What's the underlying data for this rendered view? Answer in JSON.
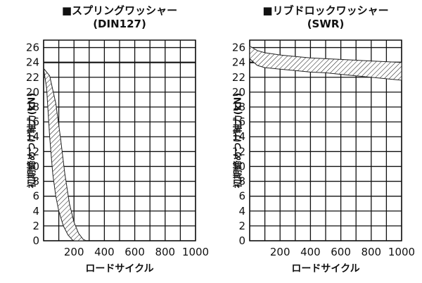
{
  "chart_data": [
    {
      "type": "area",
      "title": "■スプリングワッシャー",
      "subtitle": "(DIN127)",
      "xlabel": "ロードサイクル",
      "ylabel": "初期締めつけ軸力(kN)",
      "xlim": [
        0,
        1000
      ],
      "ylim": [
        0,
        27
      ],
      "x_ticks": [
        200,
        400,
        600,
        800,
        1000
      ],
      "y_ticks": [
        0,
        2,
        4,
        6,
        8,
        10,
        12,
        14,
        16,
        18,
        20,
        22,
        24,
        26
      ],
      "grid": true,
      "bold_gridline_y": 24,
      "series": [
        {
          "upper": {
            "x": [
              0,
              40,
              80,
              110,
              140,
              170,
              200,
              230,
              260,
              280
            ],
            "y": [
              23.2,
              22.2,
              18.5,
              14,
              9,
              5,
              2.5,
              1,
              0.2,
              0
            ]
          },
          "lower": {
            "x": [
              0,
              20,
              40,
              60,
              80,
              100,
              130,
              160,
              190,
              200
            ],
            "y": [
              23.2,
              20.5,
              14,
              9,
              6,
              4,
              2,
              0.8,
              0.1,
              0
            ]
          }
        }
      ]
    },
    {
      "type": "area",
      "title": "■リブドロックワッシャー",
      "subtitle": "(SWR)",
      "xlabel": "ロードサイクル",
      "ylabel": "初期締めつけ軸力(kN)",
      "xlim": [
        0,
        1000
      ],
      "ylim": [
        0,
        27
      ],
      "x_ticks": [
        200,
        400,
        600,
        800,
        1000
      ],
      "y_ticks": [
        0,
        2,
        4,
        6,
        8,
        10,
        12,
        14,
        16,
        18,
        20,
        22,
        24,
        26
      ],
      "grid": true,
      "bold_gridline_y": 24,
      "series": [
        {
          "upper": {
            "x": [
              0,
              50,
              100,
              200,
              300,
              400,
              500,
              600,
              700,
              800,
              900,
              1000
            ],
            "y": [
              26.2,
              25.6,
              25.3,
              25.0,
              24.8,
              24.6,
              24.5,
              24.4,
              24.3,
              24.2,
              24.1,
              24.0
            ]
          },
          "lower": {
            "x": [
              0,
              50,
              100,
              200,
              300,
              400,
              500,
              600,
              700,
              800,
              900,
              1000
            ],
            "y": [
              24.5,
              23.6,
              23.3,
              23.1,
              22.9,
              22.7,
              22.6,
              22.4,
              22.2,
              22.0,
              21.8,
              21.6
            ]
          }
        }
      ]
    }
  ]
}
